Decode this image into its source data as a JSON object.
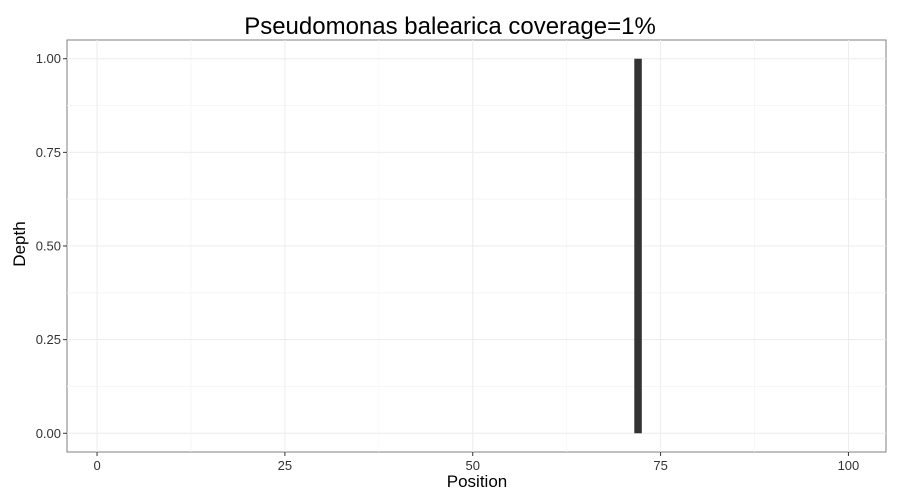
{
  "chart_data": {
    "type": "bar",
    "title": "Pseudomonas balearica coverage=1%",
    "xlabel": "Position",
    "ylabel": "Depth",
    "xlim": [
      -4,
      105
    ],
    "ylim": [
      -0.05,
      1.05
    ],
    "xticks": [
      0,
      25,
      50,
      75,
      100
    ],
    "xtick_labels": [
      "0",
      "25",
      "50",
      "75",
      "100"
    ],
    "yticks": [
      0,
      0.25,
      0.5,
      0.75,
      1
    ],
    "ytick_labels": [
      "0.00",
      "0.25",
      "0.50",
      "0.75",
      "1.00"
    ],
    "grid": true,
    "legend": "none",
    "bar_color": "#333333",
    "bar_width": 1,
    "x": [
      72
    ],
    "values": [
      1
    ]
  }
}
